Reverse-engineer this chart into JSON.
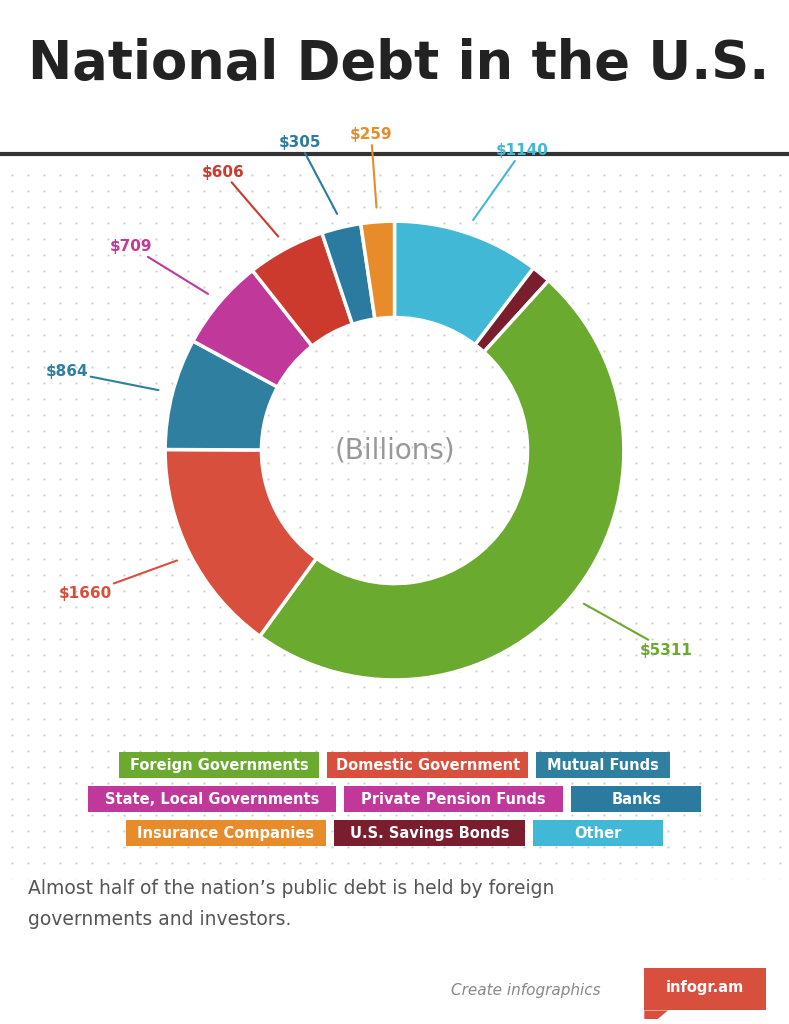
{
  "title": "National Debt in the U.S.",
  "center_label": "(Billions)",
  "segments": [
    {
      "label": "U.S. Savings Bonds",
      "value": 1140,
      "color": "#41b8d5",
      "label_color": "#41b8d5",
      "label_val": "$1140"
    },
    {
      "label": "Other",
      "value": 150,
      "color": "#7a1e2e",
      "label_color": "#7a1e2e",
      "label_val": ""
    },
    {
      "label": "Foreign Governments",
      "value": 5311,
      "color": "#6aaa2e",
      "label_color": "#6aaa2e",
      "label_val": "$5311"
    },
    {
      "label": "Domestic Government",
      "value": 1660,
      "color": "#d94f3d",
      "label_color": "#d94f3d",
      "label_val": "$1660"
    },
    {
      "label": "Mutual Funds",
      "value": 864,
      "color": "#2e7fa0",
      "label_color": "#2e7fa0",
      "label_val": "$864"
    },
    {
      "label": "State, Local Governments",
      "value": 709,
      "color": "#c0399a",
      "label_color": "#c0399a",
      "label_val": "$709"
    },
    {
      "label": "Private Pension Funds",
      "value": 606,
      "color": "#cc3a2e",
      "label_color": "#cc3a2e",
      "label_val": "$606"
    },
    {
      "label": "Banks",
      "value": 305,
      "color": "#2b7ba0",
      "label_color": "#2b7ba0",
      "label_val": "$305"
    },
    {
      "label": "Insurance Companies",
      "value": 259,
      "color": "#e88b2a",
      "label_color": "#e88b2a",
      "label_val": "$259"
    }
  ],
  "legend_rows": [
    [
      {
        "label": "Foreign Governments",
        "color": "#6aaa2e"
      },
      {
        "label": "Domestic Government",
        "color": "#d94f3d"
      },
      {
        "label": "Mutual Funds",
        "color": "#2e7fa0"
      }
    ],
    [
      {
        "label": "State, Local Governments",
        "color": "#c0399a"
      },
      {
        "label": "Private Pension Funds",
        "color": "#c0399a"
      },
      {
        "label": "Banks",
        "color": "#2b7ba0"
      }
    ],
    [
      {
        "label": "Insurance Companies",
        "color": "#e88b2a"
      },
      {
        "label": "U.S. Savings Bonds",
        "color": "#7a1e2e"
      },
      {
        "label": "Other",
        "color": "#41b8d5"
      }
    ]
  ],
  "footer_text": "Almost half of the nation’s public debt is held by foreign\ngovernments and investors.",
  "bg_color": "#f5f5f5"
}
